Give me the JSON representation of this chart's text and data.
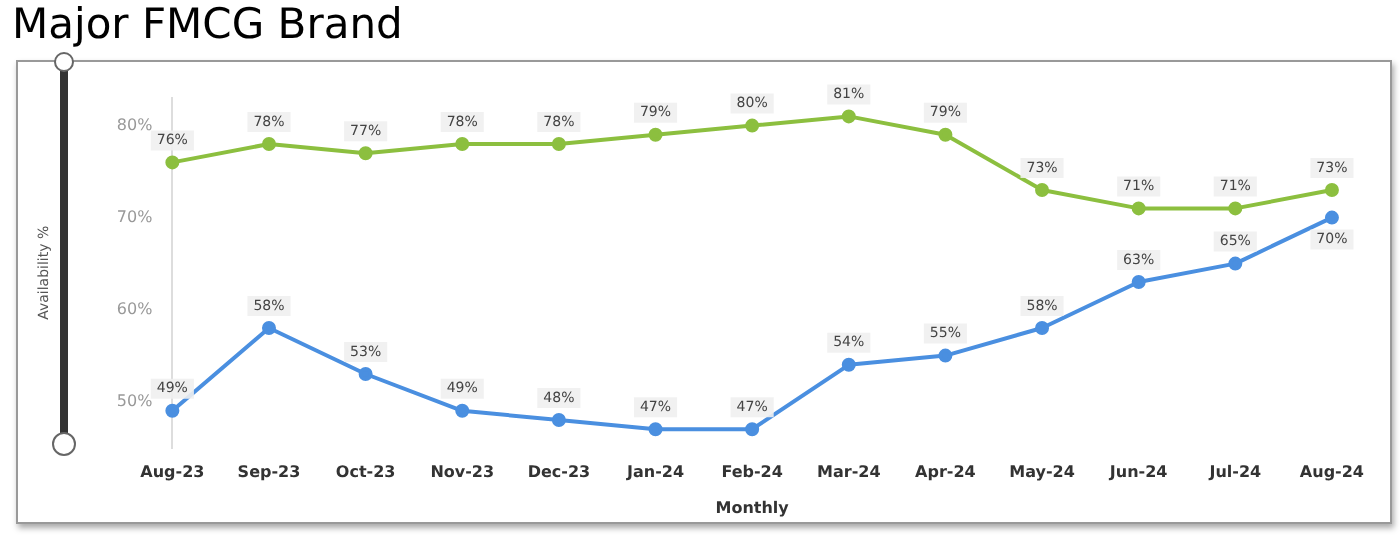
{
  "chart_data": {
    "type": "line",
    "title": "Major FMCG Brand",
    "xlabel": "Monthly",
    "ylabel": "Availability %",
    "categories": [
      "Aug-23",
      "Sep-23",
      "Oct-23",
      "Nov-23",
      "Dec-23",
      "Jan-24",
      "Feb-24",
      "Mar-24",
      "Apr-24",
      "May-24",
      "Jun-24",
      "Jul-24",
      "Aug-24"
    ],
    "series": [
      {
        "color": "#8cbf3f",
        "values": [
          76,
          78,
          77,
          78,
          78,
          79,
          80,
          81,
          79,
          73,
          71,
          71,
          73
        ],
        "value_labels": [
          "76%",
          "78%",
          "77%",
          "78%",
          "78%",
          "79%",
          "80%",
          "81%",
          "79%",
          "73%",
          "71%",
          "71%",
          "73%"
        ]
      },
      {
        "color": "#4a8fe0",
        "values": [
          49,
          58,
          53,
          49,
          48,
          47,
          47,
          54,
          55,
          58,
          63,
          65,
          70
        ],
        "value_labels": [
          "49%",
          "58%",
          "53%",
          "49%",
          "48%",
          "47%",
          "47%",
          "54%",
          "55%",
          "58%",
          "63%",
          "65%",
          "70%"
        ]
      }
    ],
    "ylim": [
      45,
      83
    ],
    "yticks": [
      {
        "value": 50,
        "label": "50%"
      },
      {
        "value": 60,
        "label": "60%"
      },
      {
        "value": 70,
        "label": "70%"
      },
      {
        "value": 80,
        "label": "80%"
      }
    ],
    "marker": "circle",
    "line_style": "solid",
    "grid": false,
    "legend": false
  }
}
